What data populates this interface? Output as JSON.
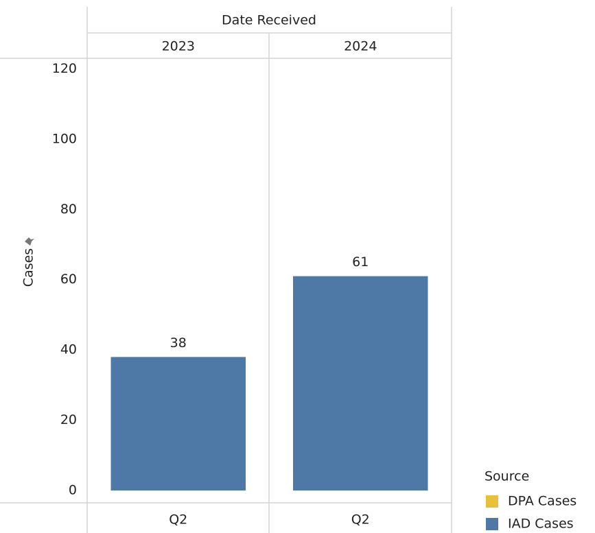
{
  "chart_data": {
    "type": "bar",
    "x_header": "Date Received",
    "x_groups": [
      "2023",
      "2024"
    ],
    "categories": [
      "Q2",
      "Q2"
    ],
    "y_label": "Cases",
    "legend_title": "Source",
    "series": [
      {
        "name": "DPA Cases",
        "color": "#e8c13b",
        "values": [
          null,
          null
        ]
      },
      {
        "name": "IAD Cases",
        "color": "#4e79a7",
        "values": [
          38,
          61
        ]
      }
    ],
    "ylim": [
      -3.5,
      123
    ],
    "yticks": [
      0,
      20,
      40,
      60,
      80,
      100,
      120
    ],
    "grid": false
  }
}
